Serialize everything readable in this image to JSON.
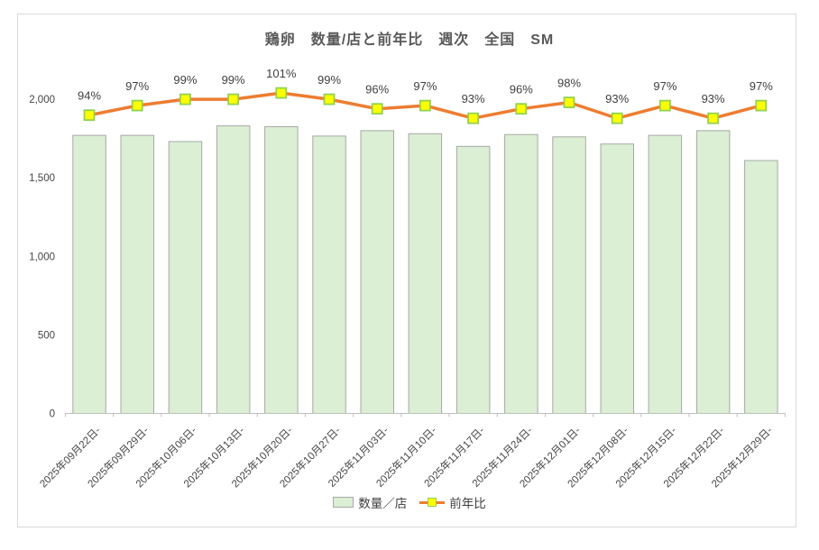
{
  "title": "鶏卵　数量/店と前年比　週次　全国　SM",
  "legend": {
    "bar_label": "数量／店",
    "line_label": "前年比"
  },
  "colors": {
    "bar_fill": "#daefd3",
    "bar_border": "#a8a8a8",
    "line": "#ed7d31",
    "marker_fill": "#ffff00",
    "marker_stroke": "#92d050",
    "title_text": "#595959",
    "axis_text": "#444444",
    "axis_line": "#bfbfbf",
    "frame_border": "#d9d9d9",
    "data_label_text": "#404040"
  },
  "chart_data": {
    "type": "bar+line",
    "title": "鶏卵　数量/店と前年比　週次　全国　SM",
    "categories": [
      "2025年09月22日-",
      "2025年09月29日-",
      "2025年10月06日-",
      "2025年10月13日-",
      "2025年10月20日-",
      "2025年10月27日-",
      "2025年11月03日-",
      "2025年11月10日-",
      "2025年11月17日-",
      "2025年11月24日-",
      "2025年12月01日-",
      "2025年12月08日-",
      "2025年12月15日-",
      "2025年12月22日-",
      "2025年12月29日-"
    ],
    "series": [
      {
        "name": "数量／店",
        "kind": "bar",
        "axis": "primary",
        "values": [
          1770,
          1770,
          1730,
          1830,
          1825,
          1765,
          1800,
          1780,
          1700,
          1775,
          1760,
          1715,
          1770,
          1800,
          1610
        ]
      },
      {
        "name": "前年比",
        "kind": "line",
        "axis": "secondary",
        "values_percent": [
          94,
          97,
          99,
          99,
          101,
          99,
          96,
          97,
          93,
          96,
          98,
          93,
          97,
          93,
          97
        ],
        "point_labels": [
          "94%",
          "97%",
          "99%",
          "99%",
          "101%",
          "99%",
          "96%",
          "97%",
          "93%",
          "96%",
          "98%",
          "93%",
          "97%",
          "93%",
          "97%"
        ]
      }
    ],
    "xlabel": "",
    "ylabel": "",
    "ylim": [
      0,
      2000
    ],
    "yticks": [
      0,
      500,
      1000,
      1500,
      2000
    ],
    "ytick_labels": [
      "0",
      "500",
      "1,000",
      "1,500",
      "2,000"
    ],
    "x_tick_rotation": -45,
    "grid": false,
    "legend_position": "bottom"
  }
}
